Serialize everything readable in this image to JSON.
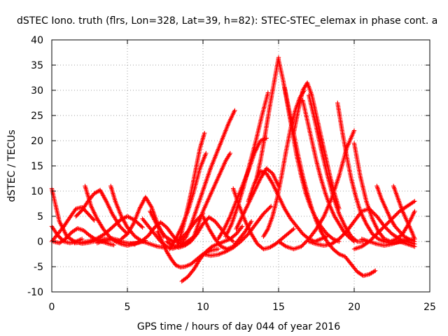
{
  "chart_data": {
    "type": "scatter",
    "title": "dSTEC Iono. truth (flrs, Lon=328, Lat=39, h=82): STEC-STEC_elemax in phase cont. a",
    "xlabel": "GPS time / hours of day 044 of year 2016",
    "ylabel": "dSTEC  / TECUs",
    "xlim": [
      0,
      25
    ],
    "ylim": [
      -10,
      40
    ],
    "xticks": [
      0,
      5,
      10,
      15,
      20,
      25
    ],
    "yticks": [
      -10,
      -5,
      0,
      5,
      10,
      15,
      20,
      25,
      30,
      35,
      40
    ],
    "grid": true,
    "marker": "+",
    "color": "#ff0000",
    "series": [
      {
        "x": [
          0.0,
          0.5,
          1.0,
          1.5,
          2.0,
          2.5,
          3.0,
          3.5,
          4.0,
          4.5
        ],
        "y": [
          10.5,
          4.0,
          1.0,
          0.0,
          -0.4,
          -0.2,
          0.2,
          0.5,
          0.6,
          0.2
        ]
      },
      {
        "x": [
          0.0,
          0.4,
          0.8,
          1.2,
          1.6,
          2.0
        ],
        "y": [
          3.0,
          1.2,
          0.0,
          -0.3,
          0.0,
          0.5
        ]
      },
      {
        "x": [
          0.0,
          0.4,
          0.8,
          1.2,
          1.6,
          2.0,
          2.4,
          2.8
        ],
        "y": [
          0.0,
          1.5,
          3.0,
          4.8,
          6.5,
          6.8,
          5.5,
          4.2
        ]
      },
      {
        "x": [
          0.1,
          0.5,
          0.9,
          1.3,
          1.7,
          2.1,
          2.5,
          2.9,
          3.3,
          3.7,
          4.1
        ],
        "y": [
          0.0,
          -0.3,
          0.5,
          1.8,
          2.6,
          2.2,
          1.2,
          0.4,
          0.0,
          -0.4,
          -0.7
        ]
      },
      {
        "x": [
          1.6,
          2.0,
          2.4,
          2.8,
          3.2,
          3.6,
          4.0,
          4.5,
          5.0
        ],
        "y": [
          5.0,
          6.2,
          8.0,
          9.5,
          10.2,
          8.0,
          5.5,
          3.0,
          1.5
        ]
      },
      {
        "x": [
          2.2,
          2.6,
          3.0,
          3.4,
          3.8,
          4.2,
          4.6,
          5.0,
          5.4,
          5.8,
          6.2
        ],
        "y": [
          11.0,
          7.0,
          4.5,
          2.5,
          1.0,
          0.0,
          -0.5,
          -0.8,
          -0.5,
          -0.2,
          0.2
        ]
      },
      {
        "x": [
          1.5,
          2.0,
          2.5,
          3.0,
          3.5,
          4.0,
          4.5,
          5.0,
          5.5,
          6.0
        ],
        "y": [
          -0.3,
          -0.2,
          0.1,
          0.6,
          1.5,
          2.8,
          4.2,
          5.0,
          4.2,
          2.8
        ]
      },
      {
        "x": [
          3.0,
          3.5,
          4.0,
          4.5,
          5.0,
          5.5
        ],
        "y": [
          -0.3,
          0.2,
          0.4,
          0.0,
          -0.3,
          -0.6
        ]
      },
      {
        "x": [
          3.9,
          4.2,
          4.6,
          5.0,
          5.5,
          6.0,
          6.5,
          7.0,
          7.5
        ],
        "y": [
          11.0,
          8.0,
          5.0,
          2.8,
          1.0,
          0.0,
          -0.5,
          -1.0,
          -1.2
        ]
      },
      {
        "x": [
          4.6,
          5.0,
          5.4,
          5.8,
          6.2,
          6.6,
          7.0,
          7.4
        ],
        "y": [
          0.5,
          1.5,
          3.5,
          6.5,
          8.8,
          6.8,
          3.5,
          1.0
        ]
      },
      {
        "x": [
          5.2,
          5.6,
          6.0,
          6.4,
          6.8,
          7.2,
          7.6,
          8.0,
          8.4
        ],
        "y": [
          -0.4,
          -0.3,
          0.2,
          1.2,
          2.8,
          3.8,
          2.8,
          1.2,
          -0.4
        ]
      },
      {
        "x": [
          6.5,
          7.0,
          7.5,
          8.0,
          8.5,
          9.0,
          9.5,
          10.0
        ],
        "y": [
          6.0,
          3.0,
          1.0,
          0.0,
          0.5,
          2.0,
          4.0,
          5.5
        ]
      },
      {
        "x": [
          6.0,
          6.4,
          6.8,
          7.2,
          7.6,
          8.0,
          8.4,
          8.8,
          9.2,
          9.6
        ],
        "y": [
          4.5,
          3.0,
          1.5,
          0.0,
          -1.0,
          -1.4,
          -1.0,
          -0.3,
          0.5,
          1.5
        ]
      },
      {
        "x": [
          7.0,
          7.3,
          7.6,
          7.9,
          8.2,
          8.5,
          8.8,
          9.2,
          9.6,
          10.0,
          10.5,
          11.0
        ],
        "y": [
          2.0,
          0.0,
          -2.0,
          -3.5,
          -4.7,
          -5.1,
          -5.0,
          -4.5,
          -3.5,
          -2.5,
          -1.8,
          -1.5
        ]
      },
      {
        "x": [
          7.6,
          8.0,
          8.4,
          8.8,
          9.2,
          9.6,
          10.0,
          10.4,
          10.8,
          11.2,
          11.6,
          12.0
        ],
        "y": [
          0.0,
          -0.8,
          -1.2,
          -0.8,
          0.0,
          1.5,
          3.5,
          4.8,
          4.0,
          2.5,
          1.0,
          0.0
        ]
      },
      {
        "x": [
          7.8,
          8.2,
          8.6,
          9.0,
          9.4,
          9.8,
          10.2
        ],
        "y": [
          -1.5,
          0.5,
          3.0,
          6.0,
          10.0,
          14.5,
          17.5
        ]
      },
      {
        "x": [
          8.3,
          8.6,
          8.9,
          9.2,
          9.5,
          9.8,
          10.1
        ],
        "y": [
          -1.0,
          2.0,
          5.5,
          9.5,
          14.0,
          18.5,
          21.5
        ]
      },
      {
        "x": [
          8.5,
          8.9,
          9.3,
          9.7,
          10.1,
          10.5,
          10.9,
          11.3,
          11.7,
          12.1
        ],
        "y": [
          -0.5,
          1.0,
          4.0,
          7.5,
          11.0,
          14.5,
          17.5,
          20.5,
          23.5,
          26.0
        ]
      },
      {
        "x": [
          8.6,
          9.0,
          9.4,
          9.8,
          10.2,
          10.6,
          11.0,
          11.4,
          11.8,
          12.2,
          12.6
        ],
        "y": [
          -7.9,
          -7.0,
          -5.5,
          -3.5,
          -2.0,
          -1.0,
          -0.5,
          0.0,
          0.5,
          1.5,
          3.0
        ]
      },
      {
        "x": [
          9.4,
          9.7,
          10.0,
          10.3,
          10.6,
          10.9,
          11.2,
          11.5,
          11.8
        ],
        "y": [
          1.0,
          3.5,
          6.0,
          8.0,
          10.0,
          12.0,
          14.0,
          16.0,
          17.5
        ]
      },
      {
        "x": [
          10.0,
          10.4,
          10.8,
          11.2,
          11.6,
          12.0,
          12.4,
          12.8,
          13.2
        ],
        "y": [
          5.0,
          2.5,
          0.5,
          -1.0,
          -1.5,
          -1.0,
          0.5,
          2.0,
          4.0
        ]
      },
      {
        "x": [
          10.0,
          10.5,
          11.0,
          11.5,
          12.0,
          12.5,
          13.0,
          13.5,
          14.0,
          14.5
        ],
        "y": [
          -2.5,
          -2.8,
          -2.6,
          -2.0,
          -1.2,
          0.0,
          1.5,
          3.5,
          5.5,
          7.0
        ]
      },
      {
        "x": [
          11.0,
          11.4,
          11.8,
          12.2,
          12.6,
          13.0,
          13.4,
          13.8,
          14.2
        ],
        "y": [
          0.5,
          2.5,
          5.0,
          8.0,
          11.0,
          14.0,
          17.5,
          20.0,
          20.5
        ]
      },
      {
        "x": [
          11.5,
          11.9,
          12.3,
          12.7,
          13.1,
          13.5,
          13.9,
          14.3
        ],
        "y": [
          1.0,
          3.5,
          7.0,
          11.0,
          15.5,
          20.0,
          25.0,
          29.5
        ]
      },
      {
        "x": [
          12.0,
          12.4,
          12.8,
          13.2,
          13.6,
          14.0,
          14.4,
          14.8,
          15.2,
          15.6,
          16.0
        ],
        "y": [
          10.5,
          7.0,
          4.0,
          1.5,
          -0.5,
          -1.5,
          -1.2,
          -0.5,
          0.5,
          1.5,
          2.5
        ]
      },
      {
        "x": [
          12.2,
          12.6,
          13.0,
          13.4,
          13.8,
          14.2,
          14.6,
          15.0
        ],
        "y": [
          2.5,
          5.0,
          7.5,
          10.0,
          12.5,
          14.5,
          13.5,
          11.0
        ]
      },
      {
        "x": [
          13.0,
          13.4,
          13.8,
          14.2,
          14.6,
          15.0,
          15.4,
          15.8,
          16.2,
          16.6,
          17.0,
          17.4,
          17.8,
          18.2
        ],
        "y": [
          8.0,
          11.5,
          14.0,
          13.5,
          11.5,
          9.0,
          6.5,
          4.5,
          3.0,
          1.5,
          0.5,
          0.0,
          0.5,
          1.0
        ]
      },
      {
        "x": [
          13.5,
          13.8,
          14.1,
          14.4,
          14.7,
          15.0
        ],
        "y": [
          12.0,
          16.0,
          21.0,
          26.5,
          31.5,
          36.5
        ]
      },
      {
        "x": [
          14.0,
          14.3,
          14.6,
          14.9,
          15.2,
          15.5,
          15.8,
          16.1,
          16.4,
          16.7
        ],
        "y": [
          1.0,
          2.5,
          5.0,
          8.5,
          13.0,
          18.0,
          22.5,
          26.0,
          28.5,
          30.0
        ]
      },
      {
        "x": [
          15.0,
          15.5,
          16.0,
          16.5,
          17.0,
          17.5,
          18.0,
          18.5,
          19.0,
          19.5,
          20.0
        ],
        "y": [
          0.0,
          -1.0,
          -1.5,
          -1.0,
          0.5,
          2.5,
          5.0,
          8.5,
          13.0,
          18.5,
          22.0
        ]
      },
      {
        "x": [
          15.0,
          15.3,
          15.6,
          15.9,
          16.2,
          16.5,
          16.8,
          17.1,
          17.4,
          17.8,
          18.2,
          18.6,
          19.0
        ],
        "y": [
          36.0,
          32.0,
          27.0,
          22.0,
          17.0,
          13.0,
          9.5,
          7.0,
          5.0,
          3.0,
          1.5,
          0.5,
          0.0
        ]
      },
      {
        "x": [
          15.4,
          15.7,
          16.0,
          16.3,
          16.6,
          16.9,
          17.2,
          17.5,
          17.8,
          18.2,
          18.6,
          19.0,
          19.4,
          19.8,
          20.2,
          20.6,
          21.0,
          21.4
        ],
        "y": [
          30.5,
          26.0,
          21.5,
          17.0,
          13.0,
          9.5,
          6.5,
          4.0,
          2.0,
          0.0,
          -1.5,
          -2.5,
          -3.0,
          -4.5,
          -6.0,
          -6.8,
          -6.5,
          -5.8
        ]
      },
      {
        "x": [
          16.0,
          16.3,
          16.6,
          16.9,
          17.2,
          17.5,
          17.8,
          18.1,
          18.4,
          18.7,
          19.0
        ],
        "y": [
          21.5,
          26.0,
          30.0,
          31.5,
          29.0,
          25.0,
          21.0,
          17.0,
          13.0,
          9.5,
          6.5
        ]
      },
      {
        "x": [
          16.6,
          16.9,
          17.2,
          17.5,
          17.8,
          18.1,
          18.4,
          18.7,
          19.0,
          19.3,
          19.6,
          20.0
        ],
        "y": [
          28.0,
          24.0,
          20.0,
          16.0,
          12.5,
          9.5,
          7.0,
          5.0,
          3.5,
          2.0,
          1.0,
          0.0
        ]
      },
      {
        "x": [
          17.0,
          17.4,
          17.8,
          18.2,
          18.6,
          19.0,
          19.4,
          19.8,
          20.2,
          20.6
        ],
        "y": [
          29.0,
          24.0,
          18.5,
          13.5,
          9.0,
          5.5,
          3.0,
          1.0,
          0.0,
          0.0
        ]
      },
      {
        "x": [
          17.0,
          17.5,
          18.0,
          18.5,
          19.0,
          19.5,
          20.0,
          20.5,
          21.0,
          21.5,
          22.0,
          22.5,
          23.0,
          23.5,
          24.0
        ],
        "y": [
          0.0,
          -0.5,
          -0.8,
          -0.5,
          0.5,
          2.0,
          4.0,
          6.0,
          6.5,
          5.0,
          3.0,
          1.5,
          0.5,
          0.0,
          -0.5
        ]
      },
      {
        "x": [
          18.9,
          19.2,
          19.5,
          19.8,
          20.1,
          20.4,
          20.8,
          21.2,
          21.6,
          22.0,
          22.4,
          22.8,
          23.2,
          23.6,
          24.0
        ],
        "y": [
          27.5,
          22.0,
          17.0,
          12.5,
          9.0,
          6.0,
          3.5,
          1.5,
          0.5,
          0.0,
          -0.3,
          -0.2,
          0.0,
          0.3,
          0.5
        ]
      },
      {
        "x": [
          20.0,
          20.4,
          20.8,
          21.2,
          21.6,
          22.0,
          22.4,
          22.8,
          23.2,
          23.6,
          24.0
        ],
        "y": [
          19.5,
          13.0,
          8.0,
          4.5,
          2.0,
          0.5,
          0.0,
          0.5,
          1.5,
          3.5,
          6.0
        ]
      },
      {
        "x": [
          20.0,
          20.5,
          21.0,
          21.5,
          22.0,
          22.5,
          23.0,
          23.5,
          24.0
        ],
        "y": [
          -1.5,
          -1.0,
          0.0,
          1.5,
          3.0,
          4.5,
          6.0,
          7.0,
          8.0
        ]
      },
      {
        "x": [
          21.5,
          21.8,
          22.1,
          22.4,
          22.7,
          23.0,
          23.3,
          23.6,
          24.0
        ],
        "y": [
          11.0,
          8.5,
          6.5,
          4.5,
          3.0,
          2.0,
          1.0,
          0.5,
          0.0
        ]
      },
      {
        "x": [
          22.6,
          22.9,
          23.2,
          23.5,
          23.8,
          24.0
        ],
        "y": [
          11.0,
          8.5,
          6.0,
          4.0,
          2.0,
          0.5
        ]
      },
      {
        "x": [
          20.5,
          21.0,
          21.5,
          22.0,
          22.5,
          23.0,
          23.5,
          24.0
        ],
        "y": [
          0.5,
          0.0,
          -0.5,
          -0.8,
          -0.5,
          0.0,
          -0.5,
          -1.0
        ]
      }
    ]
  }
}
